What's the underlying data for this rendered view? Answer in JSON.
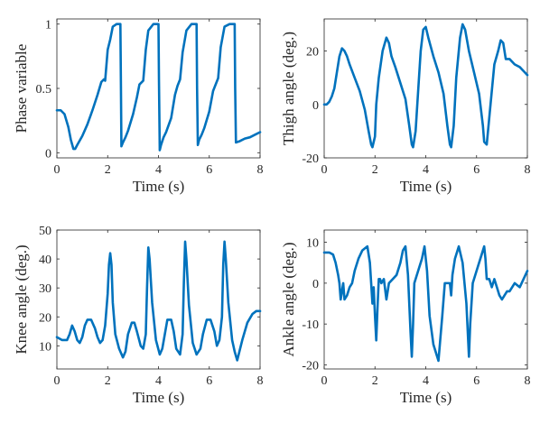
{
  "figure": {
    "line_color": "#0072BD",
    "axes_color": "#262626",
    "background": "#ffffff"
  },
  "chart_data": [
    {
      "type": "line",
      "xlabel": "Time (s)",
      "ylabel": "Phase variable",
      "xlim": [
        0,
        8
      ],
      "ylim": [
        -0.04,
        1.04
      ],
      "xticks": [
        0,
        2,
        4,
        6,
        8
      ],
      "yticks": [
        0,
        0.5,
        1
      ],
      "grid": false,
      "series": [
        {
          "x": [
            0,
            0.15,
            0.3,
            0.45,
            0.55,
            0.65,
            0.72,
            0.8,
            1.0,
            1.2,
            1.4,
            1.6,
            1.75,
            1.85,
            1.9,
            2.0,
            2.1,
            2.2,
            2.35,
            2.5,
            2.52,
            2.54,
            2.6,
            2.7,
            2.8,
            3.0,
            3.15,
            3.25,
            3.4,
            3.5,
            3.6,
            3.8,
            4.0,
            4.02,
            4.05,
            4.1,
            4.2,
            4.3,
            4.5,
            4.65,
            4.75,
            4.85,
            4.95,
            5.1,
            5.3,
            5.5,
            5.52,
            5.55,
            5.6,
            5.7,
            5.8,
            6.0,
            6.15,
            6.25,
            6.35,
            6.45,
            6.6,
            6.8,
            7.0,
            7.02,
            7.05,
            7.2,
            7.4,
            7.6,
            7.8,
            8.0
          ],
          "y": [
            0.33,
            0.33,
            0.3,
            0.2,
            0.1,
            0.03,
            0.03,
            0.06,
            0.13,
            0.22,
            0.33,
            0.45,
            0.55,
            0.57,
            0.56,
            0.8,
            0.88,
            0.98,
            1.0,
            1.0,
            0.55,
            0.05,
            0.08,
            0.12,
            0.17,
            0.3,
            0.43,
            0.53,
            0.56,
            0.8,
            0.95,
            1.0,
            1.0,
            0.55,
            0.02,
            0.06,
            0.12,
            0.16,
            0.27,
            0.45,
            0.52,
            0.57,
            0.78,
            0.95,
            1.0,
            1.0,
            0.5,
            0.06,
            0.1,
            0.14,
            0.19,
            0.32,
            0.48,
            0.53,
            0.58,
            0.82,
            0.98,
            1.0,
            1.0,
            0.5,
            0.08,
            0.09,
            0.11,
            0.12,
            0.14,
            0.16
          ]
        }
      ]
    },
    {
      "type": "line",
      "xlabel": "Time (s)",
      "ylabel": "Thigh angle (deg.)",
      "xlim": [
        0,
        8
      ],
      "ylim": [
        -20,
        32
      ],
      "xticks": [
        0,
        2,
        4,
        6,
        8
      ],
      "yticks": [
        -20,
        0,
        20
      ],
      "grid": false,
      "series": [
        {
          "x": [
            0,
            0.1,
            0.2,
            0.3,
            0.4,
            0.5,
            0.6,
            0.7,
            0.8,
            0.9,
            1.0,
            1.2,
            1.4,
            1.6,
            1.75,
            1.85,
            1.9,
            2.0,
            2.05,
            2.15,
            2.3,
            2.45,
            2.55,
            2.65,
            2.8,
            3.0,
            3.2,
            3.35,
            3.45,
            3.5,
            3.6,
            3.7,
            3.8,
            3.9,
            4.0,
            4.1,
            4.3,
            4.5,
            4.7,
            4.85,
            4.95,
            5.0,
            5.1,
            5.2,
            5.35,
            5.45,
            5.55,
            5.7,
            5.9,
            6.1,
            6.25,
            6.3,
            6.4,
            6.55,
            6.7,
            6.85,
            6.95,
            7.05,
            7.15,
            7.3,
            7.5,
            7.7,
            7.9,
            8.0
          ],
          "y": [
            0,
            0,
            1,
            3,
            6,
            12,
            18,
            21,
            20,
            18,
            15,
            10,
            5,
            -2,
            -10,
            -15,
            -16,
            -12,
            0,
            10,
            20,
            25,
            23,
            18,
            14,
            8,
            2,
            -8,
            -15,
            -16,
            -10,
            5,
            20,
            28,
            29,
            25,
            18,
            12,
            4,
            -8,
            -15,
            -16,
            -8,
            10,
            25,
            30,
            28,
            20,
            12,
            4,
            -8,
            -14,
            -15,
            0,
            15,
            20,
            24,
            23,
            17,
            17,
            15,
            14,
            12,
            11
          ]
        }
      ]
    },
    {
      "type": "line",
      "xlabel": "Time (s)",
      "ylabel": "Knee angle (deg.)",
      "xlim": [
        0,
        8
      ],
      "ylim": [
        2,
        50
      ],
      "xticks": [
        0,
        2,
        4,
        6,
        8
      ],
      "yticks": [
        10,
        20,
        30,
        40,
        50
      ],
      "grid": false,
      "series": [
        {
          "x": [
            0,
            0.2,
            0.4,
            0.5,
            0.6,
            0.7,
            0.8,
            0.9,
            1.0,
            1.1,
            1.2,
            1.35,
            1.5,
            1.6,
            1.7,
            1.8,
            1.9,
            2.0,
            2.05,
            2.1,
            2.15,
            2.2,
            2.3,
            2.45,
            2.6,
            2.7,
            2.8,
            2.95,
            3.05,
            3.15,
            3.3,
            3.4,
            3.5,
            3.55,
            3.6,
            3.65,
            3.75,
            3.9,
            4.05,
            4.15,
            4.25,
            4.35,
            4.5,
            4.6,
            4.7,
            4.85,
            4.95,
            5.0,
            5.05,
            5.1,
            5.2,
            5.35,
            5.5,
            5.65,
            5.75,
            5.9,
            6.05,
            6.2,
            6.3,
            6.4,
            6.5,
            6.55,
            6.6,
            6.65,
            6.75,
            6.9,
            7.0,
            7.1,
            7.3,
            7.5,
            7.7,
            7.85,
            8.0
          ],
          "y": [
            13,
            12,
            12,
            14,
            17,
            15,
            12,
            11,
            13,
            17,
            19,
            19,
            16,
            13,
            11,
            12,
            17,
            28,
            38,
            42,
            38,
            25,
            14,
            9,
            6,
            8,
            14,
            18,
            18,
            15,
            10,
            9,
            14,
            30,
            44,
            40,
            25,
            12,
            7,
            9,
            14,
            19,
            19,
            15,
            9,
            7,
            14,
            32,
            46,
            40,
            24,
            11,
            7,
            9,
            14,
            19,
            19,
            15,
            10,
            12,
            20,
            38,
            46,
            40,
            25,
            12,
            8,
            5,
            12,
            18,
            21,
            22,
            22
          ]
        }
      ]
    },
    {
      "type": "line",
      "xlabel": "Time (s)",
      "ylabel": "Ankle angle (deg.)",
      "xlim": [
        0,
        8
      ],
      "ylim": [
        -21,
        13
      ],
      "xticks": [
        0,
        2,
        4,
        6,
        8
      ],
      "yticks": [
        -20,
        -10,
        0,
        10
      ],
      "grid": false,
      "series": [
        {
          "x": [
            0,
            0.2,
            0.35,
            0.45,
            0.55,
            0.6,
            0.65,
            0.7,
            0.75,
            0.8,
            0.9,
            1.0,
            1.1,
            1.2,
            1.35,
            1.5,
            1.7,
            1.8,
            1.85,
            1.9,
            1.95,
            2.0,
            2.05,
            2.1,
            2.15,
            2.2,
            2.25,
            2.35,
            2.45,
            2.55,
            2.7,
            2.85,
            3.0,
            3.1,
            3.2,
            3.3,
            3.4,
            3.45,
            3.5,
            3.55,
            3.7,
            3.85,
            3.95,
            4.05,
            4.15,
            4.3,
            4.5,
            4.65,
            4.75,
            4.85,
            4.95,
            5.0,
            5.05,
            5.15,
            5.3,
            5.45,
            5.6,
            5.7,
            5.75,
            5.85,
            6.0,
            6.2,
            6.3,
            6.35,
            6.4,
            6.5,
            6.6,
            6.7,
            6.8,
            6.9,
            7.0,
            7.1,
            7.2,
            7.3,
            7.5,
            7.7,
            7.85,
            8.0
          ],
          "y": [
            7.5,
            7.5,
            7,
            5,
            2,
            0,
            -4,
            -2,
            0,
            -4,
            -3,
            -1,
            0,
            3,
            6,
            8,
            9,
            5,
            0,
            -5,
            -1,
            -8,
            -14,
            -6,
            1,
            1,
            0,
            1,
            -4,
            0,
            1,
            2,
            5,
            8,
            9,
            2,
            -12,
            -18,
            -10,
            0,
            3,
            6,
            9,
            3,
            -8,
            -15,
            -19,
            -8,
            0,
            0,
            0,
            -3,
            2,
            6,
            9,
            5,
            -5,
            -18,
            -10,
            0,
            3,
            7,
            9,
            6,
            1,
            1,
            -1,
            1,
            -1,
            -3,
            -4,
            -3,
            -2,
            -2,
            0,
            -1,
            1,
            3
          ]
        }
      ]
    }
  ]
}
